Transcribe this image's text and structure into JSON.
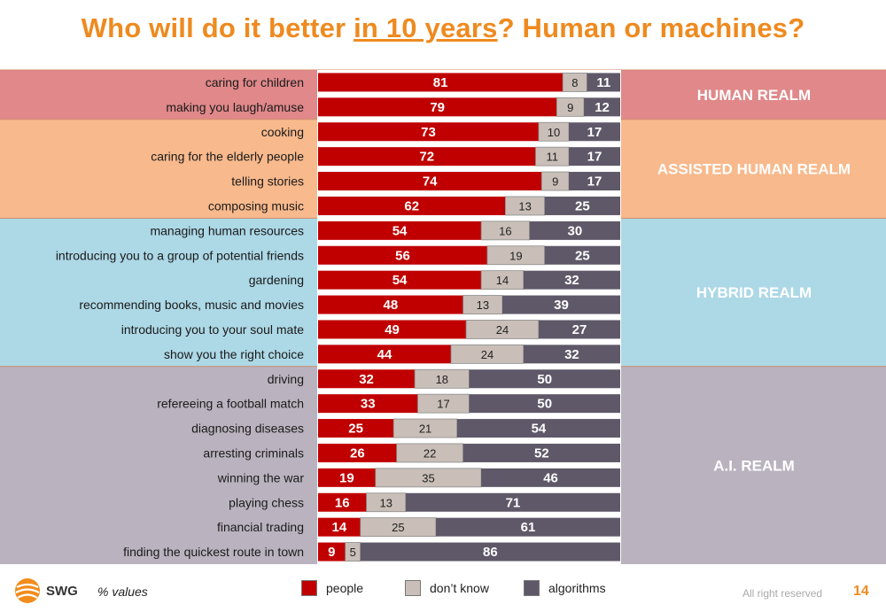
{
  "title": {
    "prefix": "Who will do it better ",
    "underlined": "in 10 years",
    "suffix": "? Human or machines?"
  },
  "colors": {
    "people": "#c00000",
    "dont_know": "#c9bfb8",
    "algorithms": "#5e5868",
    "title": "#ee8a1f",
    "band_human": "#e0888a",
    "band_assisted": "#f8b98c",
    "band_hybrid": "#add8e6",
    "band_ai": "#bab3bf"
  },
  "chart_data": {
    "type": "bar",
    "orientation": "horizontal",
    "stacked": true,
    "unit": "% values",
    "categories": [
      "caring for children",
      "making you laugh/amuse",
      "cooking",
      "caring for the elderly people",
      "telling stories",
      "composing music",
      "managing human resources",
      "introducing you to a group of potential friends",
      "gardening",
      "recommending books, music and movies",
      "introducing you to your soul mate",
      "show you the right choice",
      "driving",
      "refereeing a football match",
      "diagnosing diseases",
      "arresting criminals",
      "winning the war",
      "playing chess",
      "financial trading",
      "finding the quickest route in town"
    ],
    "series": [
      {
        "name": "people",
        "values": [
          81,
          79,
          73,
          72,
          74,
          62,
          54,
          56,
          54,
          48,
          49,
          44,
          32,
          33,
          25,
          26,
          19,
          16,
          14,
          9
        ]
      },
      {
        "name": "don't know",
        "values": [
          8,
          9,
          10,
          11,
          9,
          13,
          16,
          19,
          14,
          13,
          24,
          24,
          18,
          17,
          21,
          22,
          35,
          13,
          25,
          5
        ]
      },
      {
        "name": "algorithms",
        "values": [
          11,
          12,
          17,
          17,
          17,
          25,
          30,
          25,
          32,
          39,
          27,
          32,
          50,
          50,
          54,
          52,
          46,
          71,
          61,
          86
        ]
      }
    ],
    "xlim": [
      0,
      100
    ],
    "groups": [
      {
        "label": "HUMAN REALM",
        "start": 0,
        "end": 1,
        "color": "#e0888a"
      },
      {
        "label": "ASSISTED HUMAN REALM",
        "start": 2,
        "end": 5,
        "color": "#f8b98c"
      },
      {
        "label": "HYBRID REALM",
        "start": 6,
        "end": 11,
        "color": "#add8e6"
      },
      {
        "label": "A.I. REALM",
        "start": 12,
        "end": 19,
        "color": "#bab3bf"
      }
    ]
  },
  "legend": [
    {
      "label": "people",
      "color": "#c00000"
    },
    {
      "label": "don’t know",
      "color": "#c9bfb8"
    },
    {
      "label": "algorithms",
      "color": "#5e5868"
    }
  ],
  "footer": {
    "unit_note": "% values",
    "logo_text": "SWG",
    "rights": "All right reserved",
    "page_number": "14"
  }
}
